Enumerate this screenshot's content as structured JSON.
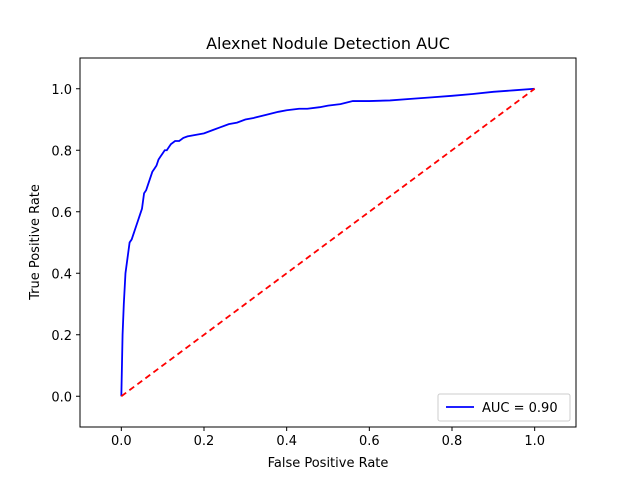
{
  "chart_data": {
    "type": "line",
    "title": "Alexnet Nodule Detection AUC",
    "xlabel": "False Positive Rate",
    "ylabel": "True Positive Rate",
    "xlim": [
      -0.1,
      1.1
    ],
    "ylim": [
      -0.1,
      1.1
    ],
    "xticks": [
      "0.0",
      "0.2",
      "0.4",
      "0.6",
      "0.8",
      "1.0"
    ],
    "yticks": [
      "0.0",
      "0.2",
      "0.4",
      "0.6",
      "0.8",
      "1.0"
    ],
    "grid": false,
    "legend_position": "lower-right",
    "series": [
      {
        "name": "AUC = 0.90",
        "color": "#0000ff",
        "style": "solid",
        "x": [
          0.0,
          0.003,
          0.006,
          0.01,
          0.015,
          0.02,
          0.025,
          0.03,
          0.035,
          0.04,
          0.045,
          0.05,
          0.055,
          0.06,
          0.065,
          0.07,
          0.075,
          0.08,
          0.085,
          0.09,
          0.095,
          0.1,
          0.105,
          0.11,
          0.115,
          0.12,
          0.13,
          0.14,
          0.15,
          0.16,
          0.18,
          0.2,
          0.22,
          0.24,
          0.26,
          0.28,
          0.3,
          0.32,
          0.35,
          0.38,
          0.4,
          0.43,
          0.45,
          0.48,
          0.5,
          0.53,
          0.56,
          0.6,
          0.65,
          0.7,
          0.75,
          0.8,
          0.85,
          0.9,
          0.95,
          1.0
        ],
        "y": [
          0.0,
          0.2,
          0.3,
          0.4,
          0.45,
          0.5,
          0.51,
          0.53,
          0.55,
          0.57,
          0.59,
          0.61,
          0.66,
          0.67,
          0.69,
          0.71,
          0.73,
          0.74,
          0.75,
          0.77,
          0.78,
          0.79,
          0.8,
          0.8,
          0.81,
          0.82,
          0.83,
          0.83,
          0.84,
          0.845,
          0.85,
          0.855,
          0.865,
          0.875,
          0.885,
          0.89,
          0.9,
          0.905,
          0.915,
          0.925,
          0.93,
          0.935,
          0.935,
          0.94,
          0.945,
          0.95,
          0.96,
          0.96,
          0.962,
          0.967,
          0.972,
          0.977,
          0.983,
          0.99,
          0.995,
          1.0
        ]
      },
      {
        "name": "",
        "color": "#ff0000",
        "style": "dashed",
        "x": [
          0.0,
          1.0
        ],
        "y": [
          0.0,
          1.0
        ]
      }
    ]
  }
}
